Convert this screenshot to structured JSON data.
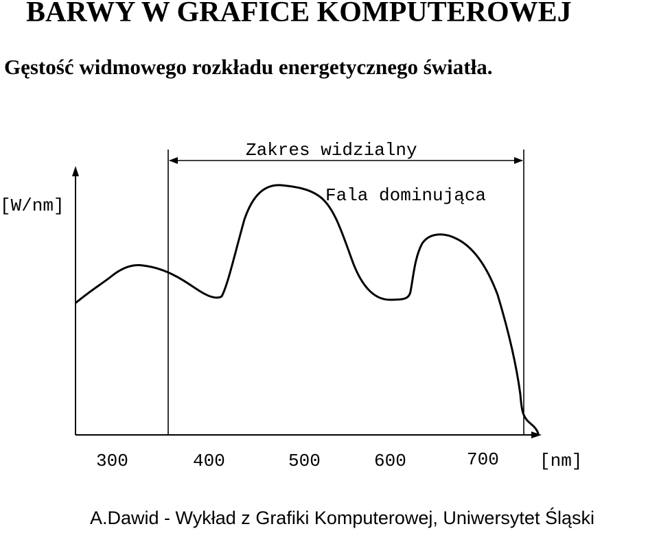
{
  "title": "BARWY W GRAFICE KOMPUTEROWEJ",
  "subtitle": "Gęstość widmowego rozkładu energetycznego światła.",
  "diagram": {
    "visible_range_label": "Zakres widzialny",
    "dominant_wave_label": "Fala dominująca",
    "y_axis_unit": "[W/nm]",
    "x_axis_unit": "[nm]",
    "x_ticks": [
      "300",
      "400",
      "500",
      "600",
      "700"
    ],
    "line_color": "#000000"
  },
  "footer": "A.Dawid - Wykład z Grafiki Komputerowej, Uniwersytet Śląski"
}
